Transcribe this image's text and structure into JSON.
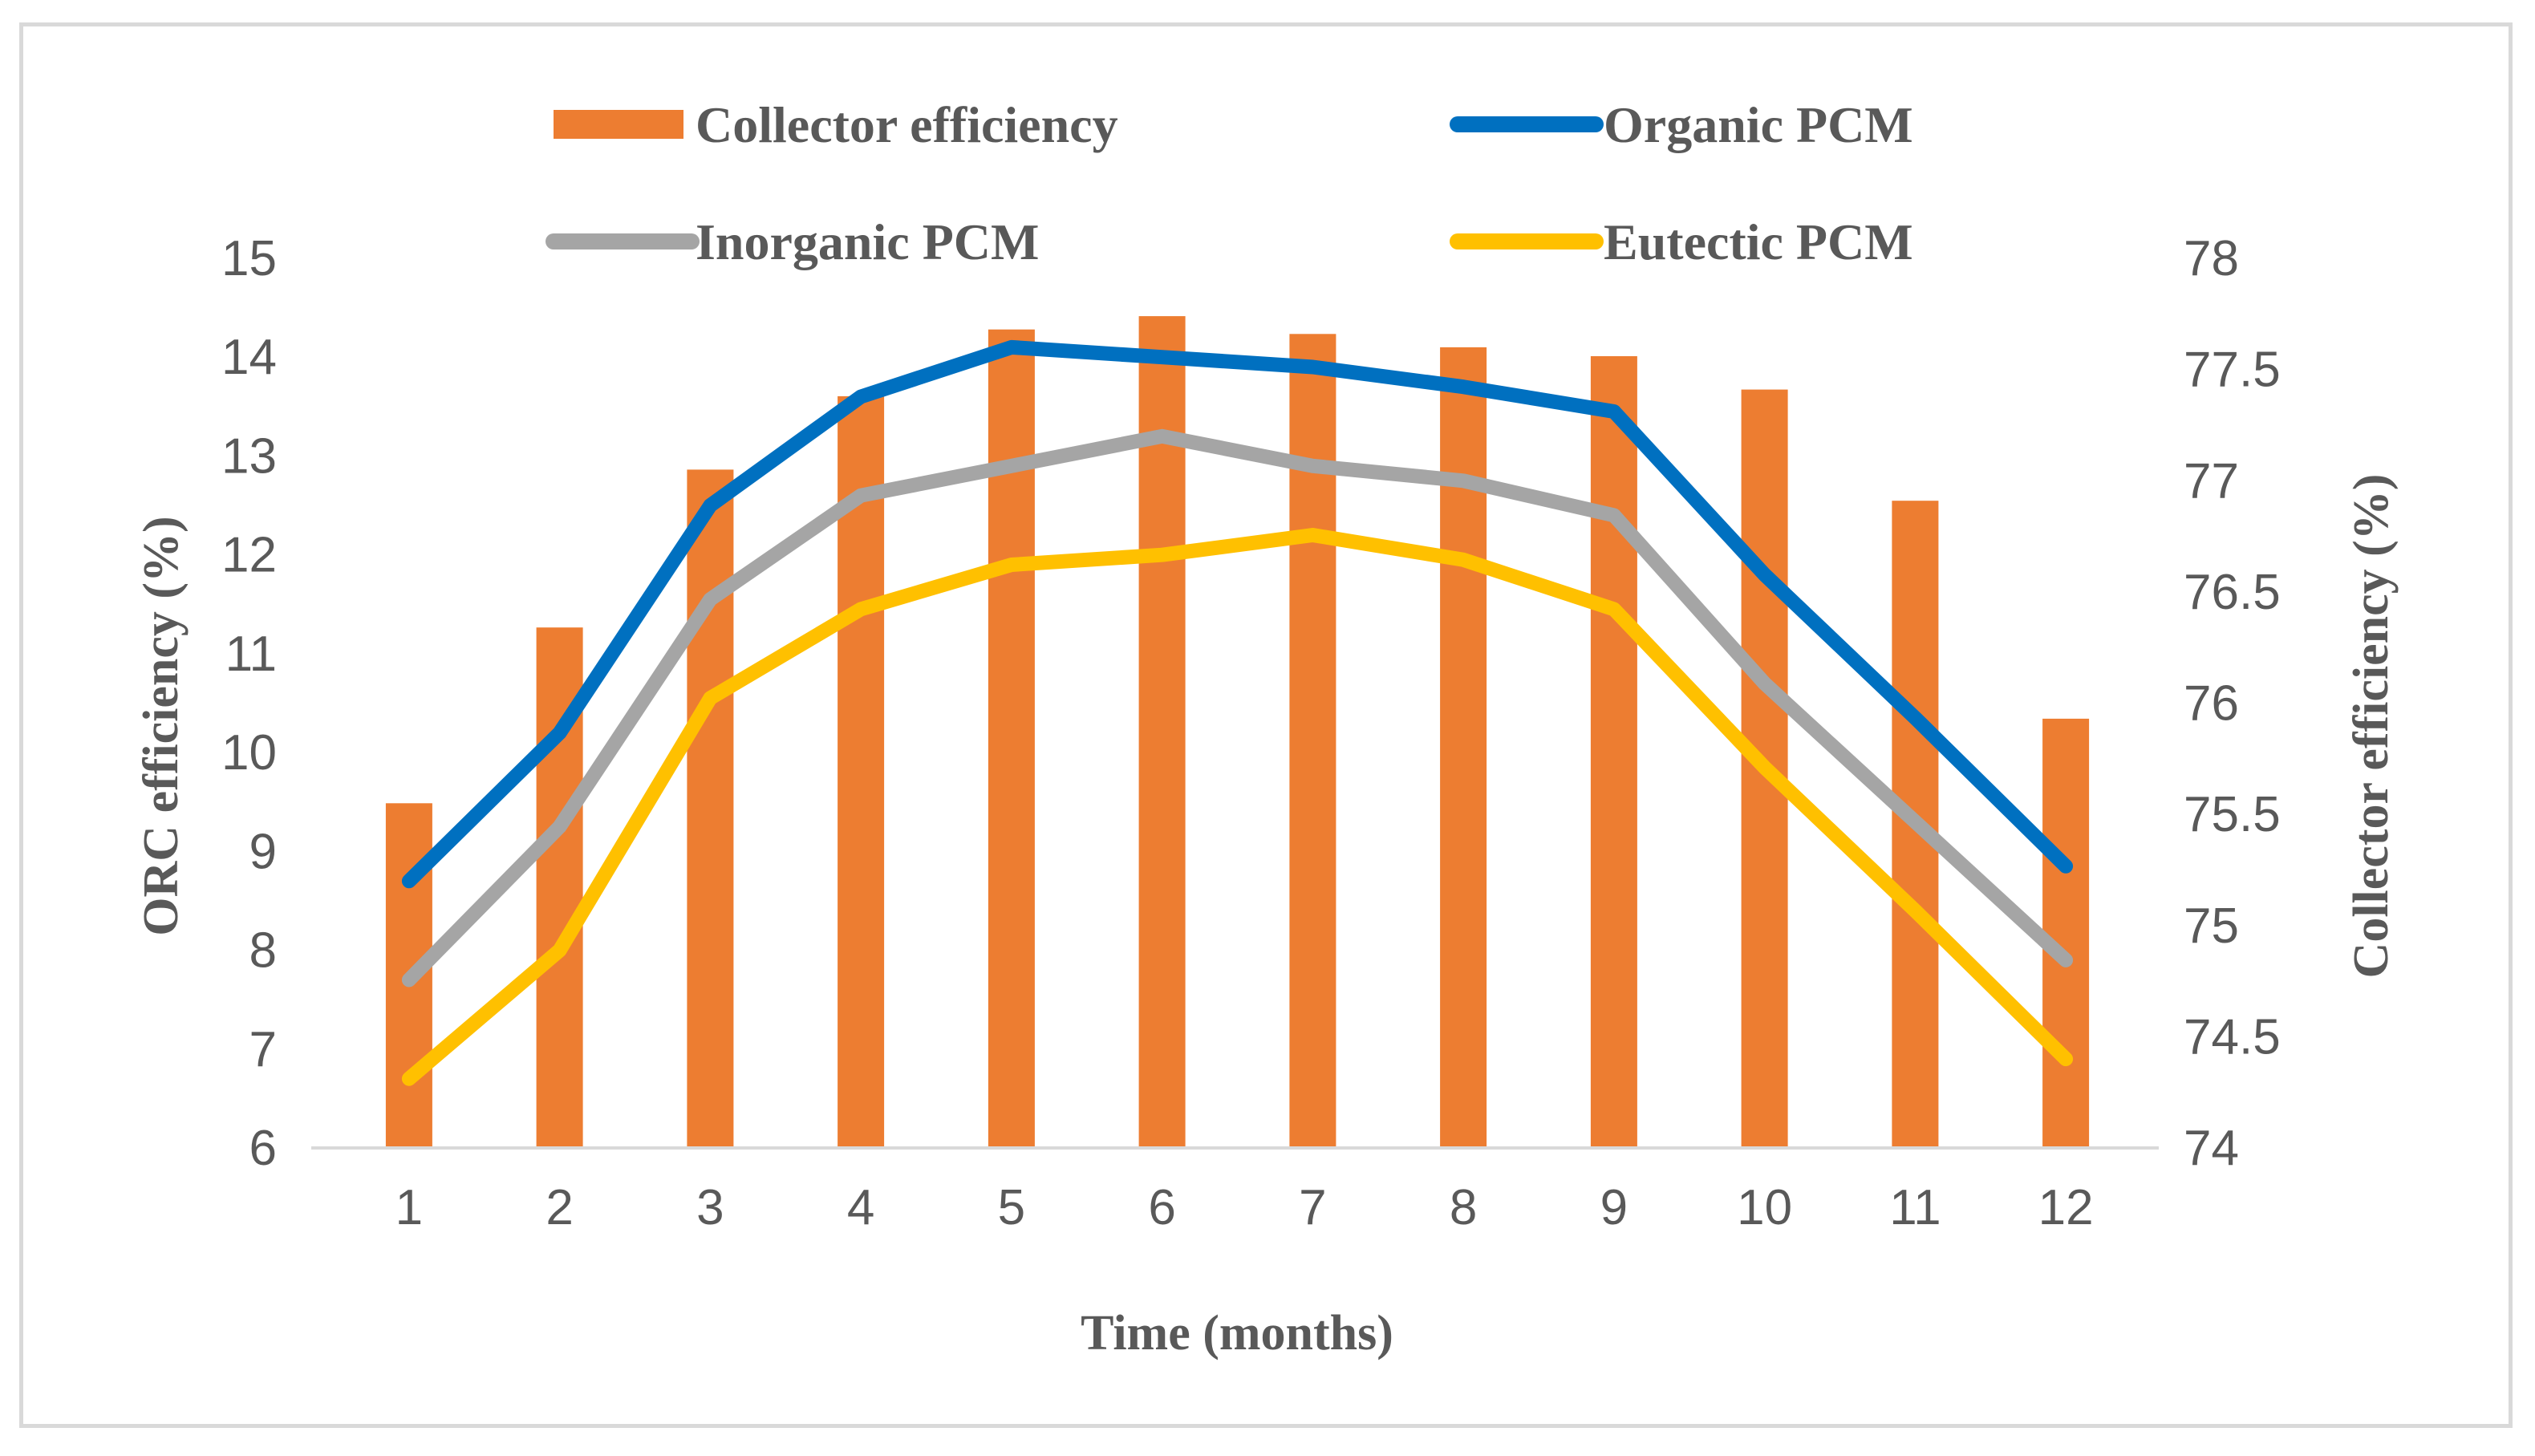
{
  "chart_data": {
    "type": "bar",
    "categories": [
      "1",
      "2",
      "3",
      "4",
      "5",
      "6",
      "7",
      "8",
      "9",
      "10",
      "11",
      "12"
    ],
    "bar_series": {
      "name": "Collector efficiency",
      "color": "#ED7D31",
      "axis": "right",
      "values": [
        75.55,
        76.34,
        77.05,
        77.38,
        77.68,
        77.74,
        77.66,
        77.6,
        77.56,
        77.41,
        76.91,
        75.93
      ]
    },
    "line_series": [
      {
        "name": "Organic PCM",
        "color": "#0070C0",
        "axis": "left",
        "values": [
          8.7,
          10.2,
          12.5,
          13.6,
          14.1,
          14.0,
          13.9,
          13.7,
          13.45,
          11.8,
          10.35,
          8.85
        ]
      },
      {
        "name": "Inorganic PCM",
        "color": "#A5A5A5",
        "axis": "left",
        "values": [
          7.7,
          9.25,
          11.55,
          12.6,
          12.9,
          13.2,
          12.9,
          12.75,
          12.4,
          10.7,
          9.3,
          7.9
        ]
      },
      {
        "name": "Eutectic PCM",
        "color": "#FFC000",
        "axis": "left",
        "values": [
          6.7,
          8.0,
          10.55,
          11.45,
          11.9,
          12.0,
          12.2,
          11.95,
          11.45,
          9.85,
          8.4,
          6.9
        ]
      }
    ],
    "xlabel": "Time (months)",
    "ylabel_left": "ORC efficiency (%)",
    "ylabel_right": "Collector efficiency (%)",
    "ylim_left": [
      6,
      15
    ],
    "yticks_left": [
      "6",
      "7",
      "8",
      "9",
      "10",
      "11",
      "12",
      "13",
      "14",
      "15"
    ],
    "ylim_right": [
      74,
      78
    ],
    "yticks_right": [
      "74",
      "74.5",
      "75",
      "75.5",
      "76",
      "76.5",
      "77",
      "77.5",
      "78"
    ],
    "grid": false,
    "legend_position": "top"
  }
}
